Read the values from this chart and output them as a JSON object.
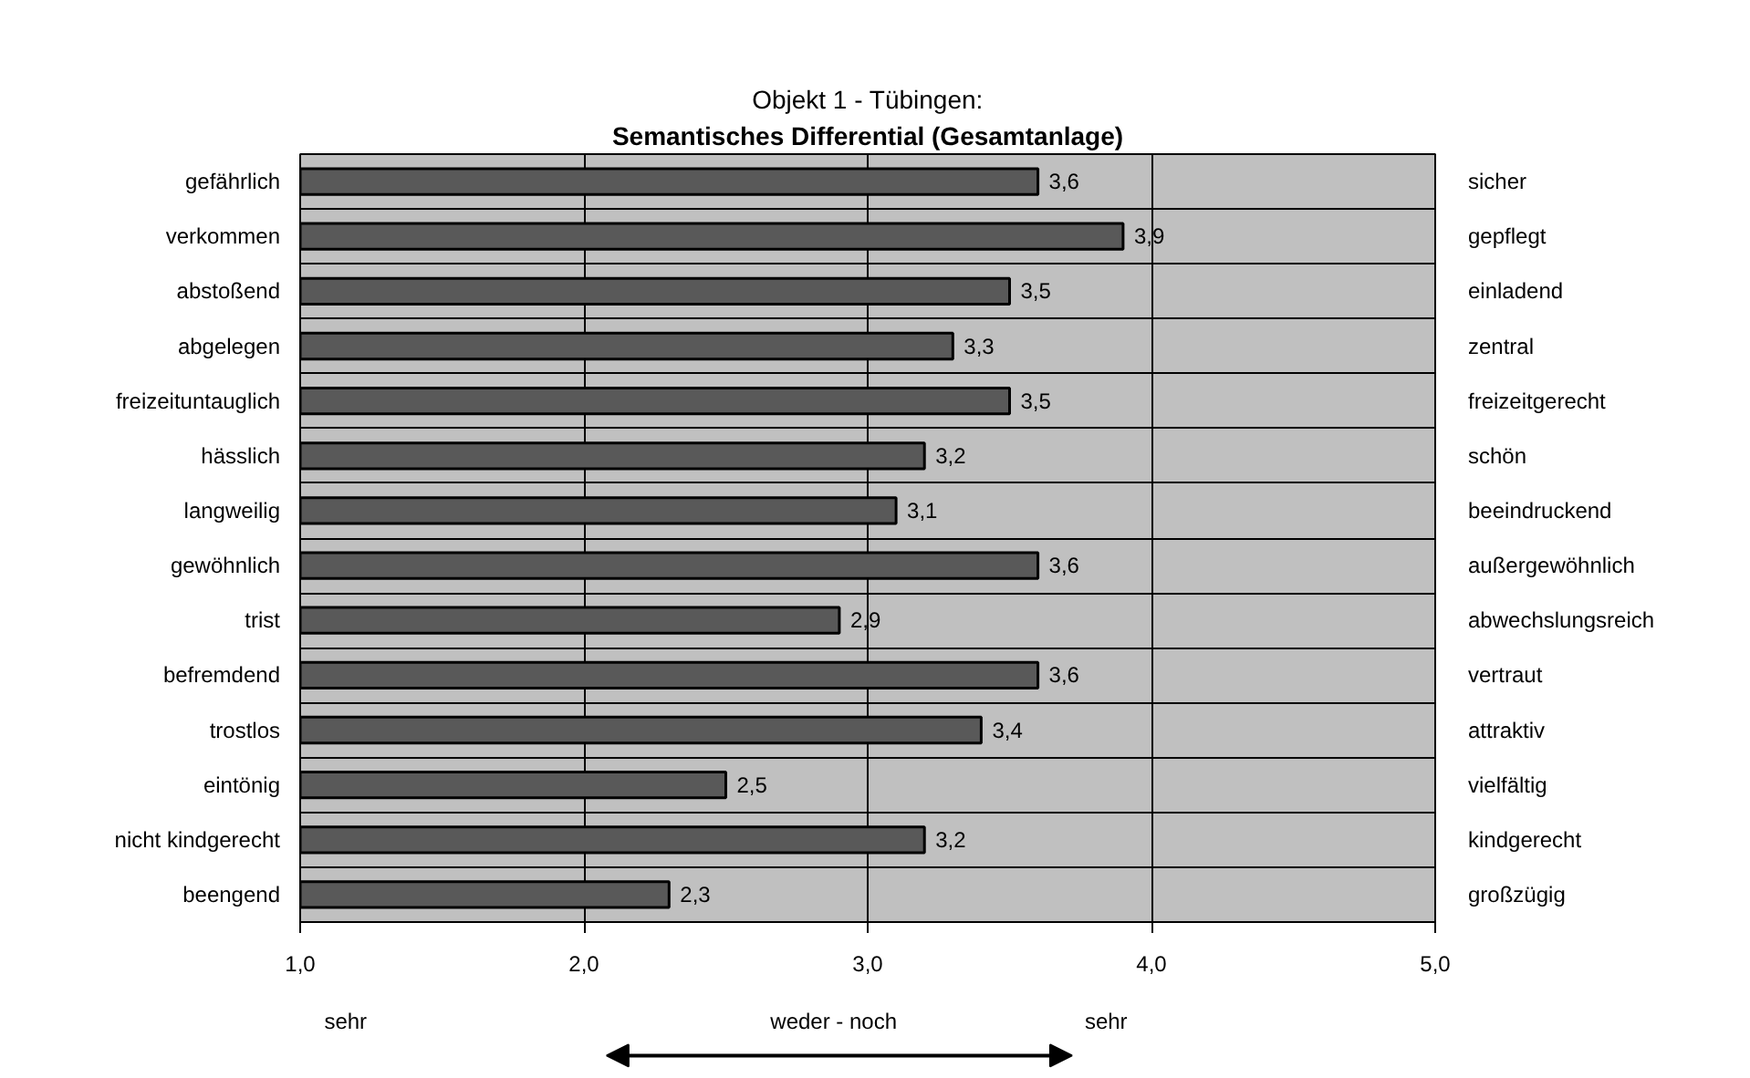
{
  "chart_data": {
    "type": "bar",
    "orientation": "horizontal",
    "title": "Objekt 1 - Tübingen:",
    "subtitle": "Semantisches Differential (Gesamtanlage)",
    "categories": [
      "gefährlich",
      "verkommen",
      "abstoßend",
      "abgelegen",
      "freizeituntauglich",
      "hässlich",
      "langweilig",
      "gewöhnlich",
      "trist",
      "befremdend",
      "trostlos",
      "eintönig",
      "nicht kindgerecht",
      "beengend"
    ],
    "y2_categories": [
      "sicher",
      "gepflegt",
      "einladend",
      "zentral",
      "freizeitgerecht",
      "schön",
      "beeindruckend",
      "außergewöhnlich",
      "abwechslungsreich",
      "vertraut",
      "attraktiv",
      "vielfältig",
      "kindgerecht",
      "großzügig"
    ],
    "values": [
      3.6,
      3.9,
      3.5,
      3.3,
      3.5,
      3.2,
      3.1,
      3.6,
      2.9,
      3.6,
      3.4,
      2.5,
      3.2,
      2.3
    ],
    "value_labels": [
      "3,6",
      "3,9",
      "3,5",
      "3,3",
      "3,5",
      "3,2",
      "3,1",
      "3,6",
      "2,9",
      "3,6",
      "3,4",
      "2,5",
      "3,2",
      "2,3"
    ],
    "color": "#595959",
    "xlim": [
      1,
      5
    ],
    "xticks": [
      {
        "value": 1,
        "label": "1,0"
      },
      {
        "value": 2,
        "label": "2,0"
      },
      {
        "value": 3,
        "label": "3,0"
      },
      {
        "value": 4,
        "label": "4,0"
      },
      {
        "value": 5,
        "label": "5,0"
      }
    ],
    "grid": true,
    "annotations": [
      "sehr",
      "weder - noch",
      "sehr"
    ]
  }
}
